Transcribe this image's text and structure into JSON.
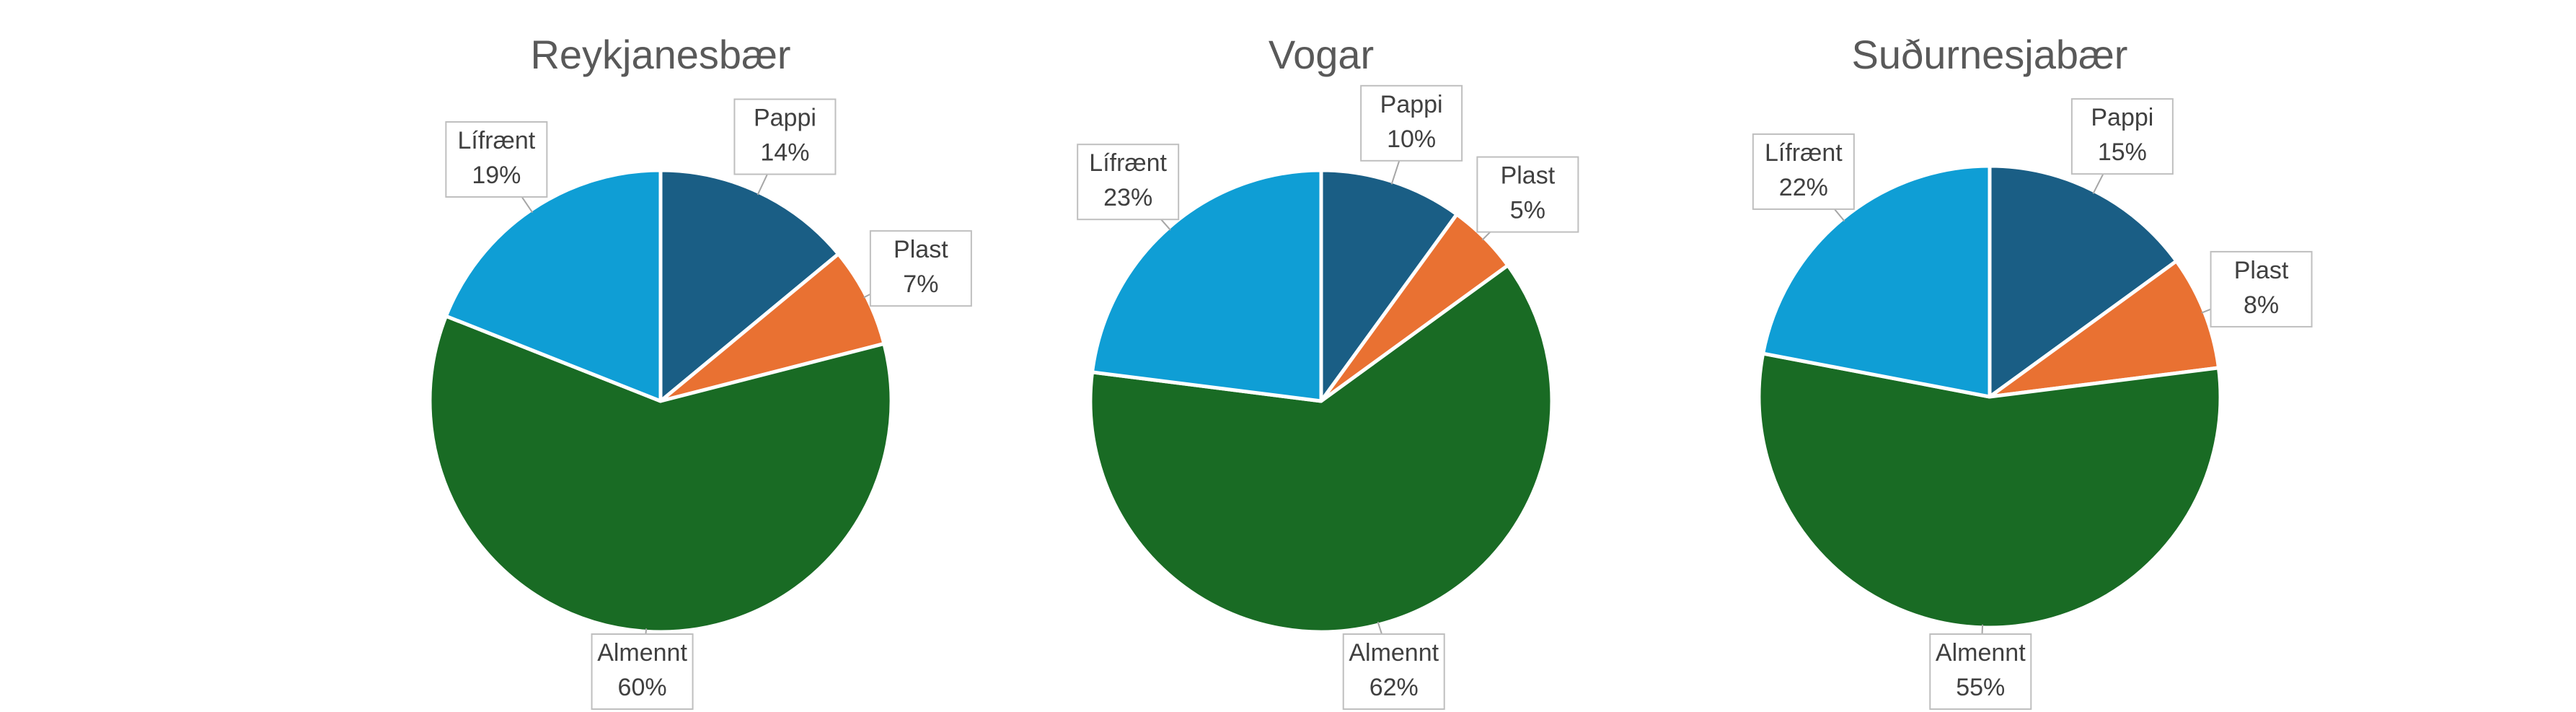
{
  "chart_data": [
    {
      "type": "pie",
      "title": "Reykjanesbær",
      "categories": [
        "Pappi",
        "Plast",
        "Almennt",
        "Lífrænt"
      ],
      "values": [
        14,
        7,
        60,
        19
      ],
      "value_labels": [
        "14%",
        "7%",
        "60%",
        "19%"
      ],
      "colors": [
        "#1a5e85",
        "#e97132",
        "#196b24",
        "#0f9ed5"
      ]
    },
    {
      "type": "pie",
      "title": "Vogar",
      "categories": [
        "Pappi",
        "Plast",
        "Almennt",
        "Lífrænt"
      ],
      "values": [
        10,
        5,
        62,
        23
      ],
      "value_labels": [
        "10%",
        "5%",
        "62%",
        "23%"
      ],
      "colors": [
        "#1a5e85",
        "#e97132",
        "#196b24",
        "#0f9ed5"
      ]
    },
    {
      "type": "pie",
      "title": "Suðurnesjabær",
      "categories": [
        "Pappi",
        "Plast",
        "Almennt",
        "Lífrænt"
      ],
      "values": [
        15,
        8,
        55,
        22
      ],
      "value_labels": [
        "15%",
        "8%",
        "55%",
        "22%"
      ],
      "colors": [
        "#1a5e85",
        "#e97132",
        "#196b24",
        "#0f9ed5"
      ]
    }
  ]
}
